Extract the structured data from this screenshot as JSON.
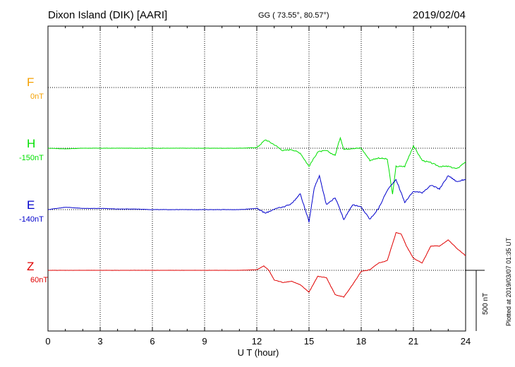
{
  "header": {
    "station": "Dixon Island (DIK)  [AARI]",
    "coords": "GG ( 73.55°,  80.57°)",
    "date": "2019/02/04"
  },
  "footer": {
    "xlabel": "U T (hour)",
    "plotted": "Plotted at 2019/03/07 01:35 UT",
    "scale_label": "500 nT"
  },
  "channels": [
    {
      "key": "F",
      "offset": "0nT",
      "color": "#f4a000"
    },
    {
      "key": "H",
      "offset": "-150nT",
      "color": "#00e000"
    },
    {
      "key": "E",
      "offset": "-140nT",
      "color": "#0000cc"
    },
    {
      "key": "Z",
      "offset": "60nT",
      "color": "#e00000"
    }
  ],
  "chart_data": {
    "type": "line",
    "xlabel": "U T (hour)",
    "xlim": [
      0,
      24
    ],
    "x_ticks": [
      "0",
      "3",
      "6",
      "9",
      "12",
      "15",
      "18",
      "21",
      "24"
    ],
    "grid": true,
    "scale_bar_nT": 500,
    "series": [
      {
        "name": "H",
        "baseline_nT": -150,
        "color": "#00e000",
        "x": [
          0,
          1,
          2,
          3,
          4,
          5,
          6,
          7,
          8,
          9,
          10,
          11,
          12,
          12.5,
          13,
          13.5,
          14,
          14.5,
          15,
          15.5,
          16,
          16.5,
          16.8,
          17,
          17.5,
          18,
          18.5,
          19,
          19.5,
          19.8,
          20,
          20.5,
          21,
          21.5,
          22,
          22.5,
          23,
          23.5,
          24
        ],
        "y": [
          0,
          -5,
          0,
          0,
          0,
          0,
          0,
          0,
          0,
          0,
          0,
          0,
          5,
          70,
          30,
          -20,
          -10,
          -40,
          -150,
          -30,
          -20,
          -60,
          90,
          -10,
          0,
          0,
          -100,
          -80,
          -90,
          -380,
          -150,
          -150,
          20,
          -100,
          -120,
          -150,
          -150,
          -170,
          -110
        ]
      },
      {
        "name": "E",
        "baseline_nT": -140,
        "color": "#0000cc",
        "x": [
          0,
          1,
          2,
          3,
          4,
          5,
          6,
          7,
          8,
          9,
          10,
          11,
          12,
          12.5,
          13,
          13.5,
          14,
          14.5,
          15,
          15.3,
          15.6,
          16,
          16.5,
          17,
          17.5,
          18,
          18.5,
          19,
          19.5,
          20,
          20.5,
          21,
          21.5,
          22,
          22.5,
          23,
          23.5,
          24
        ],
        "y": [
          0,
          20,
          10,
          10,
          5,
          5,
          0,
          0,
          0,
          0,
          0,
          0,
          10,
          -30,
          5,
          20,
          50,
          130,
          -100,
          180,
          280,
          40,
          100,
          -80,
          40,
          20,
          -80,
          10,
          160,
          250,
          60,
          150,
          140,
          200,
          170,
          280,
          230,
          250
        ]
      },
      {
        "name": "Z",
        "baseline_nT": 60,
        "color": "#e00000",
        "x": [
          0,
          1,
          2,
          3,
          4,
          5,
          6,
          7,
          8,
          9,
          10,
          11,
          12,
          12.4,
          12.7,
          13,
          13.5,
          14,
          14.5,
          15,
          15.5,
          16,
          16.5,
          17,
          17.5,
          18,
          18.5,
          19,
          19.5,
          20,
          20.3,
          20.6,
          21,
          21.5,
          22,
          22.5,
          23,
          23.5,
          24
        ],
        "y": [
          0,
          0,
          0,
          0,
          0,
          0,
          0,
          0,
          0,
          0,
          0,
          0,
          5,
          35,
          0,
          -80,
          -100,
          -90,
          -120,
          -180,
          -50,
          -60,
          -200,
          -220,
          -120,
          -10,
          5,
          60,
          80,
          310,
          300,
          200,
          100,
          60,
          200,
          200,
          250,
          180,
          120
        ]
      }
    ]
  }
}
